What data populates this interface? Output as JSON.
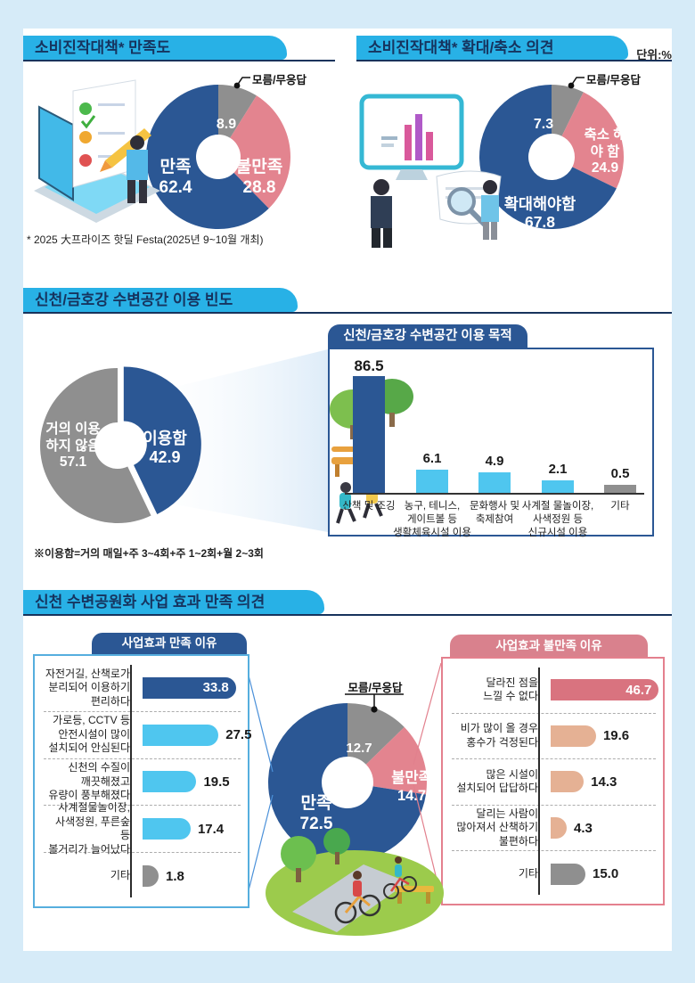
{
  "page": {
    "unit_label": "단위:%",
    "section1_footnote": "* 2025 大프라이즈 핫딜 Festa(2025년 9~10월 개최)",
    "section3_footnote": "※이용함=거의 매일+주 3~4회+주 1~2회+월 2~3회"
  },
  "colors": {
    "page_background": "#d6ebf8",
    "banner_blue": "#28b1e6",
    "banner_text_navy": "#16345f",
    "navy": "#2b5794",
    "pink": "#e3848f",
    "gray": "#8f8f8f",
    "light_blue": "#4fc6ef",
    "rose": "#d9737f",
    "salmon": "#e5b194",
    "rose_tab": "#d9818d",
    "blue_box_border": "#56aede",
    "rose_box_border": "#e4808e"
  },
  "chart_data": [
    {
      "id": "stimulus-satisfaction-donut",
      "type": "pie",
      "title": "소비진작대책* 만족도",
      "segments": [
        {
          "label": "모름/무응답",
          "value": 8.9,
          "color": "#8f8f8f"
        },
        {
          "label": "불만족",
          "value": 28.8,
          "color": "#e3848f"
        },
        {
          "label": "만족",
          "value": 62.4,
          "color": "#2b5794"
        }
      ]
    },
    {
      "id": "stimulus-expand-reduce-donut",
      "type": "pie",
      "title": "소비진작대책* 확대/축소 의견",
      "segments": [
        {
          "label": "모름/무응답",
          "value": 7.3,
          "color": "#8f8f8f"
        },
        {
          "label": "축소 해야 함",
          "value": 24.9,
          "color": "#e3848f"
        },
        {
          "label": "확대해야함",
          "value": 67.8,
          "color": "#2b5794"
        }
      ]
    },
    {
      "id": "riverside-usage-donut",
      "type": "pie",
      "title": "신천/금호강 수변공간 이용 빈도",
      "segments": [
        {
          "label": "이용함",
          "value": 42.9,
          "color": "#2b5794",
          "explode": 7
        },
        {
          "label": "거의 이용하지 않음",
          "value": 57.1,
          "color": "#8f8f8f"
        }
      ]
    },
    {
      "id": "riverside-purpose-bars",
      "type": "bar",
      "title": "신천/금호강 수변공간 이용 목적",
      "categories": [
        "산책 및 조깅",
        "농구, 테니스,\n게이트볼 등\n생활체육시설 이용",
        "문화행사 및\n축제참여",
        "사계절 물놀이장,\n사색정원 등\n신규시설 이용",
        "기타"
      ],
      "values": [
        86.5,
        6.1,
        4.9,
        2.1,
        0.5
      ],
      "colors": [
        "#2b5794",
        "#4fc6ef",
        "#4fc6ef",
        "#4fc6ef",
        "#8f8f8f"
      ],
      "ylim": [
        0,
        100
      ]
    },
    {
      "id": "project-satisfied-reasons-bars",
      "type": "bar",
      "orientation": "horizontal",
      "title": "사업효과 만족 이유",
      "categories": [
        "자전거길, 산책로가\n분리되어 이용하기\n편리하다",
        "가로등, CCTV 등\n안전시설이 많이\n설치되어 안심된다",
        "신천의 수질이\n깨끗해졌고\n유량이 풍부해졌다",
        "사계절물놀이장,\n사색정원, 푸른숲 등\n볼거리가 늘어났다",
        "기타"
      ],
      "values": [
        33.8,
        27.5,
        19.5,
        17.4,
        1.8
      ],
      "colors": [
        "#2b5794",
        "#4fc6ef",
        "#4fc6ef",
        "#4fc6ef",
        "#8f8f8f"
      ],
      "value_inside": [
        true,
        false,
        false,
        false,
        false
      ]
    },
    {
      "id": "project-effect-satisfaction-donut",
      "type": "pie",
      "title": "신천 수변공원화 사업 효과 만족 의견",
      "segments": [
        {
          "label": "모름/무응답",
          "value": 12.7,
          "color": "#8f8f8f"
        },
        {
          "label": "불만족",
          "value": 14.7,
          "color": "#e3848f"
        },
        {
          "label": "만족",
          "value": 72.5,
          "color": "#2b5794"
        }
      ]
    },
    {
      "id": "project-dissatisfied-reasons-bars",
      "type": "bar",
      "orientation": "horizontal",
      "title": "사업효과 불만족 이유",
      "categories": [
        "달라진 점을\n느낄 수 없다",
        "비가 많이 올 경우\n홍수가 걱정된다",
        "많은 시설이\n설치되어 답답하다",
        "달리는 사람이\n많아져서 산책하기\n불편하다",
        "기타"
      ],
      "values": [
        46.7,
        19.6,
        14.3,
        4.3,
        15.0
      ],
      "colors": [
        "#d9737f",
        "#e5b194",
        "#e5b194",
        "#e5b194",
        "#8f8f8f"
      ],
      "value_inside": [
        true,
        false,
        false,
        false,
        false
      ]
    }
  ]
}
